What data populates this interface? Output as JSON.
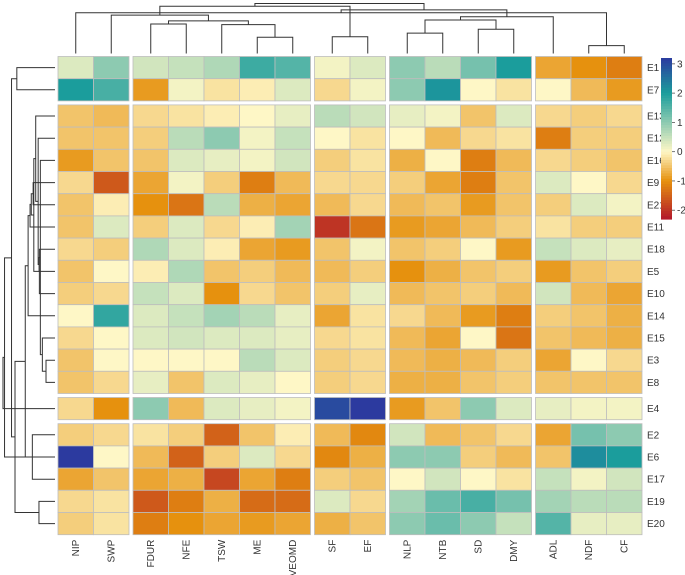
{
  "chart_data": {
    "type": "heatmap",
    "columns": [
      "NIP",
      "SWP",
      "FDUR",
      "NFE",
      "TSW",
      "ME",
      "IVEOMD",
      "SF",
      "EF",
      "NLP",
      "NTB",
      "SD",
      "DMY",
      "ADL",
      "NDF",
      "CF"
    ],
    "column_groups": [
      [
        "NIP",
        "SWP"
      ],
      [
        "FDUR",
        "NFE",
        "TSW",
        "ME",
        "IVEOMD"
      ],
      [
        "SF",
        "EF"
      ],
      [
        "NLP",
        "NTB",
        "SD",
        "DMY"
      ],
      [
        "ADL",
        "NDF",
        "CF"
      ]
    ],
    "rows": [
      "E1",
      "E7",
      "E13",
      "E12",
      "E16",
      "E9",
      "E21",
      "E11",
      "E18",
      "E5",
      "E10",
      "E14",
      "E15",
      "E3",
      "E8",
      "E4",
      "E2",
      "E6",
      "E17",
      "E19",
      "E20"
    ],
    "row_groups": [
      [
        "E1",
        "E7"
      ],
      [
        "E13",
        "E12",
        "E16",
        "E9",
        "E21",
        "E11",
        "E18",
        "E5",
        "E10",
        "E14",
        "E15",
        "E3",
        "E8"
      ],
      [
        "E4"
      ],
      [
        "E2",
        "E6",
        "E17",
        "E19",
        "E20"
      ]
    ],
    "values": [
      [
        0.3,
        1.0,
        0.4,
        0.5,
        0.7,
        1.7,
        1.5,
        0.1,
        0.3,
        1.0,
        0.6,
        1.2,
        2.0,
        -0.8,
        -1.0,
        -1.2
      ],
      [
        2.0,
        1.6,
        -0.9,
        0.1,
        -0.2,
        -0.1,
        0.3,
        -0.3,
        0.1,
        1.0,
        2.1,
        0.0,
        -0.2,
        0.0,
        -0.6,
        -0.9
      ],
      [
        -0.5,
        -0.6,
        -0.3,
        -0.2,
        -0.1,
        0.0,
        0.2,
        0.6,
        0.4,
        0.2,
        0.1,
        -0.5,
        0.3,
        -0.3,
        -0.4,
        -0.3
      ],
      [
        -0.5,
        -0.5,
        -0.4,
        0.6,
        1.0,
        0.1,
        0.5,
        0.0,
        -0.2,
        0.0,
        -0.6,
        -0.3,
        -0.2,
        -1.2,
        -0.4,
        -0.4
      ],
      [
        -0.9,
        -0.5,
        -0.5,
        0.3,
        0.2,
        0.1,
        0.4,
        -0.4,
        -0.2,
        -0.7,
        0.0,
        -1.2,
        -0.6,
        -0.3,
        -0.4,
        -0.5
      ],
      [
        -0.3,
        -1.6,
        -0.8,
        0.1,
        -0.4,
        -1.2,
        -0.6,
        -0.3,
        -0.3,
        -0.4,
        -0.8,
        -1.2,
        -0.5,
        0.3,
        0.0,
        -0.3
      ],
      [
        -0.5,
        -0.1,
        -1.0,
        -1.3,
        0.6,
        -0.7,
        -0.8,
        -0.6,
        -0.3,
        -0.6,
        -0.5,
        -0.9,
        -0.5,
        -0.4,
        0.3,
        0.1
      ],
      [
        -0.5,
        0.3,
        -0.4,
        0.3,
        -0.3,
        -0.1,
        0.8,
        -2.0,
        -1.3,
        -0.9,
        -0.8,
        -0.6,
        -0.4,
        -0.2,
        -0.4,
        -0.4
      ],
      [
        -0.3,
        -0.4,
        0.7,
        0.3,
        -0.1,
        -0.8,
        -0.9,
        -0.5,
        0.1,
        -0.5,
        -0.4,
        0.0,
        -0.9,
        0.5,
        0.3,
        0.2
      ],
      [
        -0.5,
        0.0,
        -0.1,
        0.7,
        -0.5,
        -0.4,
        -0.6,
        -0.6,
        -0.4,
        -1.0,
        -0.7,
        -0.5,
        -0.4,
        -0.9,
        -0.5,
        -0.4
      ],
      [
        -0.4,
        -0.3,
        0.5,
        0.3,
        -1.0,
        -0.3,
        -0.5,
        -0.4,
        0.2,
        -0.6,
        -0.5,
        -0.4,
        -0.6,
        0.4,
        -0.6,
        -0.8
      ],
      [
        0.0,
        1.8,
        0.3,
        0.5,
        0.8,
        0.6,
        0.2,
        -0.8,
        -0.2,
        -0.3,
        -0.6,
        -0.9,
        -1.2,
        -0.4,
        -0.5,
        -0.7
      ],
      [
        -0.3,
        0.0,
        0.3,
        0.4,
        0.3,
        0.3,
        0.2,
        -0.3,
        -0.2,
        -0.6,
        -0.8,
        0.0,
        -1.3,
        -0.5,
        -0.6,
        -0.7
      ],
      [
        -0.5,
        0.0,
        0.0,
        0.0,
        0.0,
        0.6,
        0.3,
        -0.4,
        -0.3,
        -0.6,
        -0.7,
        -0.6,
        -0.4,
        -0.8,
        0.0,
        -0.3
      ],
      [
        -0.5,
        -0.3,
        0.2,
        -0.5,
        0.3,
        0.2,
        0.0,
        -0.4,
        -0.3,
        -0.7,
        -0.7,
        -0.5,
        -0.4,
        -0.5,
        -0.5,
        -0.5
      ],
      [
        -0.3,
        -1.0,
        1.0,
        -0.6,
        0.3,
        0.2,
        0.1,
        3.0,
        3.2,
        -0.9,
        -0.5,
        1.0,
        0.3,
        0.2,
        0.1,
        0.1
      ],
      [
        -0.4,
        -0.3,
        -0.2,
        -0.4,
        -1.5,
        -0.5,
        -0.1,
        -0.6,
        -1.1,
        0.4,
        -0.6,
        -0.5,
        -0.3,
        -0.8,
        1.2,
        1.0
      ],
      [
        3.2,
        0.0,
        -0.6,
        -1.5,
        -0.4,
        0.3,
        -0.3,
        -1.1,
        -0.7,
        1.0,
        1.0,
        -0.4,
        -0.6,
        -0.5,
        2.2,
        2.0
      ],
      [
        -0.8,
        -0.5,
        -0.8,
        -0.7,
        -1.8,
        -0.8,
        -1.2,
        -0.4,
        -0.5,
        0.0,
        0.4,
        0.0,
        -0.2,
        0.5,
        0.1,
        0.4
      ],
      [
        -0.3,
        -0.2,
        -1.6,
        -1.2,
        -0.7,
        -1.4,
        -1.4,
        0.3,
        -0.3,
        0.8,
        1.3,
        1.6,
        1.2,
        0.8,
        0.6,
        0.6
      ],
      [
        -0.4,
        -0.2,
        -1.2,
        -1.0,
        -0.8,
        -0.9,
        -0.8,
        -0.7,
        -0.5,
        1.0,
        1.3,
        1.0,
        0.5,
        1.5,
        0.2,
        0.2
      ]
    ],
    "legend_ticks": [
      3,
      2,
      1,
      0,
      -1,
      -2
    ],
    "color_range": [
      -2.3,
      3.2
    ],
    "colors": {
      "low": "#b2182b",
      "mid_low": "#e6910e",
      "mid": "#fef7c6",
      "mid_high": "#1b9d9c",
      "high": "#2c3a9f"
    }
  }
}
